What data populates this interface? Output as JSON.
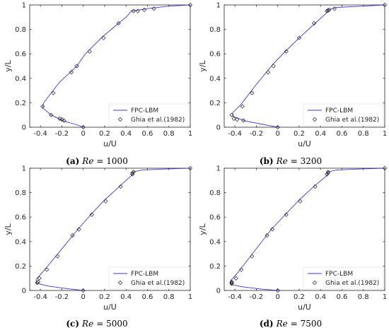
{
  "colors": {
    "line": "#3b3bdc",
    "marker": "#222222",
    "axis": "#262626",
    "legend_border": "#d9d9d9"
  },
  "chart_data": [
    {
      "type": "line",
      "caption": {
        "label": "(a)",
        "re": "Re",
        "value": "= 1000"
      },
      "xlabel": "u/U",
      "ylabel": "y/L",
      "xlim": [
        -0.5,
        1
      ],
      "ylim": [
        0,
        1
      ],
      "xticks": [
        "-0.4",
        "-0.2",
        "0",
        "0.2",
        "0.4",
        "0.6",
        "0.8",
        "1"
      ],
      "yticks": [
        "0",
        "0.2",
        "0.4",
        "0.6",
        "0.8",
        "1"
      ],
      "legend_position": "bottom-right",
      "series": [
        {
          "name": "FPC-LBM",
          "kind": "line",
          "points": [
            [
              0,
              0
            ],
            [
              -0.06,
              0.02
            ],
            [
              -0.18,
              0.05
            ],
            [
              -0.3,
              0.1
            ],
            [
              -0.38,
              0.16
            ],
            [
              -0.37,
              0.2
            ],
            [
              -0.3,
              0.28
            ],
            [
              -0.22,
              0.37
            ],
            [
              -0.12,
              0.45
            ],
            [
              -0.06,
              0.5
            ],
            [
              0.02,
              0.6
            ],
            [
              0.18,
              0.74
            ],
            [
              0.33,
              0.85
            ],
            [
              0.4,
              0.9
            ],
            [
              0.45,
              0.95
            ],
            [
              0.6,
              0.97
            ],
            [
              0.8,
              0.99
            ],
            [
              1,
              1
            ]
          ]
        },
        {
          "name": "Ghia et al.(1982)",
          "kind": "markers",
          "points": [
            [
              0,
              0
            ],
            [
              -0.18,
              0.055
            ],
            [
              -0.2,
              0.063
            ],
            [
              -0.22,
              0.07
            ],
            [
              -0.3,
              0.1
            ],
            [
              -0.38,
              0.17
            ],
            [
              -0.28,
              0.28
            ],
            [
              -0.11,
              0.45
            ],
            [
              -0.06,
              0.5
            ],
            [
              0.06,
              0.62
            ],
            [
              0.19,
              0.73
            ],
            [
              0.33,
              0.85
            ],
            [
              0.47,
              0.95
            ],
            [
              0.51,
              0.95
            ],
            [
              0.57,
              0.96
            ],
            [
              0.66,
              0.97
            ],
            [
              1,
              1
            ]
          ]
        }
      ]
    },
    {
      "type": "line",
      "caption": {
        "label": "(b)",
        "re": "Re",
        "value": "= 3200"
      },
      "xlabel": "u/U",
      "ylabel": "y/L",
      "xlim": [
        -0.5,
        1
      ],
      "ylim": [
        0,
        1
      ],
      "xticks": [
        "-0.4",
        "-0.2",
        "0",
        "0.2",
        "0.4",
        "0.6",
        "0.8",
        "1"
      ],
      "yticks": [
        "0",
        "0.2",
        "0.4",
        "0.6",
        "0.8",
        "1"
      ],
      "legend_position": "bottom-right",
      "series": [
        {
          "name": "FPC-LBM",
          "kind": "line",
          "points": [
            [
              0,
              0
            ],
            [
              -0.12,
              0.02
            ],
            [
              -0.3,
              0.05
            ],
            [
              -0.42,
              0.09
            ],
            [
              -0.42,
              0.12
            ],
            [
              -0.35,
              0.18
            ],
            [
              -0.2,
              0.35
            ],
            [
              -0.04,
              0.52
            ],
            [
              0.06,
              0.61
            ],
            [
              0.2,
              0.73
            ],
            [
              0.35,
              0.85
            ],
            [
              0.45,
              0.93
            ],
            [
              0.47,
              0.96
            ],
            [
              0.55,
              0.98
            ],
            [
              0.8,
              0.99
            ],
            [
              1,
              1
            ]
          ]
        },
        {
          "name": "Ghia et al.(1982)",
          "kind": "markers",
          "points": [
            [
              0,
              0
            ],
            [
              -0.32,
              0.055
            ],
            [
              -0.38,
              0.063
            ],
            [
              -0.41,
              0.07
            ],
            [
              -0.43,
              0.1
            ],
            [
              -0.33,
              0.17
            ],
            [
              -0.24,
              0.28
            ],
            [
              -0.09,
              0.45
            ],
            [
              -0.04,
              0.5
            ],
            [
              0.08,
              0.62
            ],
            [
              0.2,
              0.73
            ],
            [
              0.34,
              0.85
            ],
            [
              0.46,
              0.95
            ],
            [
              0.47,
              0.955
            ],
            [
              0.48,
              0.96
            ],
            [
              0.53,
              0.97
            ],
            [
              1,
              1
            ]
          ]
        }
      ]
    },
    {
      "type": "line",
      "caption": {
        "label": "(c)",
        "re": "Re",
        "value": "= 5000"
      },
      "xlabel": "u/U",
      "ylabel": "y/L",
      "xlim": [
        -0.5,
        1
      ],
      "ylim": [
        0,
        1
      ],
      "xticks": [
        "-0.4",
        "-0.2",
        "0",
        "0.2",
        "0.4",
        "0.6",
        "0.8",
        "1"
      ],
      "yticks": [
        "0",
        "0.2",
        "0.4",
        "0.6",
        "0.8",
        "1"
      ],
      "legend_position": "bottom-right",
      "series": [
        {
          "name": "FPC-LBM",
          "kind": "line",
          "points": [
            [
              0,
              0
            ],
            [
              -0.15,
              0.015
            ],
            [
              -0.32,
              0.035
            ],
            [
              -0.44,
              0.06
            ],
            [
              -0.44,
              0.09
            ],
            [
              -0.36,
              0.17
            ],
            [
              -0.2,
              0.34
            ],
            [
              -0.05,
              0.5
            ],
            [
              0.06,
              0.61
            ],
            [
              0.2,
              0.74
            ],
            [
              0.35,
              0.86
            ],
            [
              0.45,
              0.94
            ],
            [
              0.47,
              0.97
            ],
            [
              0.55,
              0.985
            ],
            [
              0.8,
              0.995
            ],
            [
              1,
              1
            ]
          ]
        },
        {
          "name": "Ghia et al.(1982)",
          "kind": "markers",
          "points": [
            [
              0,
              0
            ],
            [
              -0.43,
              0.063
            ],
            [
              -0.42,
              0.07
            ],
            [
              -0.41,
              0.1
            ],
            [
              -0.34,
              0.17
            ],
            [
              -0.24,
              0.28
            ],
            [
              -0.1,
              0.45
            ],
            [
              -0.04,
              0.5
            ],
            [
              0.08,
              0.62
            ],
            [
              0.21,
              0.73
            ],
            [
              0.35,
              0.85
            ],
            [
              0.46,
              0.95
            ],
            [
              0.46,
              0.96
            ],
            [
              0.47,
              0.97
            ],
            [
              1,
              1
            ]
          ]
        }
      ]
    },
    {
      "type": "line",
      "caption": {
        "label": "(d)",
        "re": "Re",
        "value": "= 7500"
      },
      "xlabel": "u/U",
      "ylabel": "y/L",
      "xlim": [
        -0.5,
        1
      ],
      "ylim": [
        0,
        1
      ],
      "xticks": [
        "-0.4",
        "-0.2",
        "0",
        "0.2",
        "0.4",
        "0.6",
        "0.8",
        "1"
      ],
      "yticks": [
        "0",
        "0.2",
        "0.4",
        "0.6",
        "0.8",
        "1"
      ],
      "legend_position": "bottom-right",
      "series": [
        {
          "name": "FPC-LBM",
          "kind": "line",
          "points": [
            [
              0,
              0
            ],
            [
              -0.16,
              0.012
            ],
            [
              -0.33,
              0.03
            ],
            [
              -0.44,
              0.05
            ],
            [
              -0.44,
              0.08
            ],
            [
              -0.37,
              0.15
            ],
            [
              -0.21,
              0.33
            ],
            [
              -0.06,
              0.5
            ],
            [
              0.06,
              0.61
            ],
            [
              0.2,
              0.74
            ],
            [
              0.35,
              0.86
            ],
            [
              0.46,
              0.94
            ],
            [
              0.47,
              0.97
            ],
            [
              0.55,
              0.985
            ],
            [
              0.8,
              0.995
            ],
            [
              1,
              1
            ]
          ]
        },
        {
          "name": "Ghia et al.(1982)",
          "kind": "markers",
          "points": [
            [
              0,
              0
            ],
            [
              -0.43,
              0.055
            ],
            [
              -0.43,
              0.063
            ],
            [
              -0.43,
              0.07
            ],
            [
              -0.39,
              0.1
            ],
            [
              -0.34,
              0.17
            ],
            [
              -0.24,
              0.28
            ],
            [
              -0.1,
              0.45
            ],
            [
              -0.05,
              0.5
            ],
            [
              0.08,
              0.62
            ],
            [
              0.21,
              0.73
            ],
            [
              0.35,
              0.85
            ],
            [
              0.46,
              0.95
            ],
            [
              0.47,
              0.96
            ],
            [
              0.47,
              0.97
            ],
            [
              1,
              1
            ]
          ]
        }
      ]
    }
  ]
}
